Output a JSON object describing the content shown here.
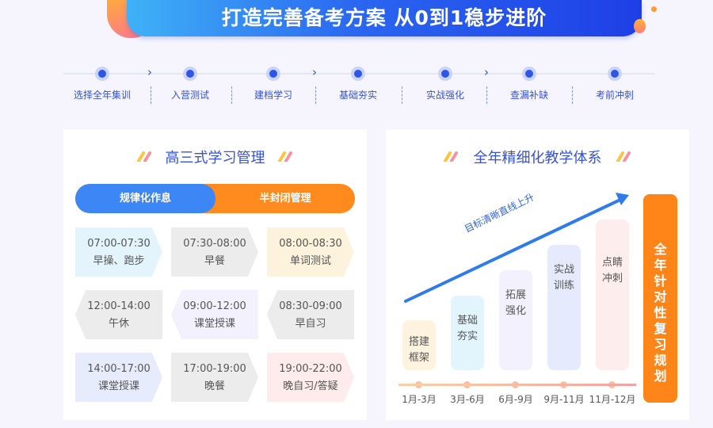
{
  "banner": {
    "title": "打造完善备考方案 从0到1稳步进阶"
  },
  "steps": [
    "选择全年集训",
    "入营测试",
    "建档学习",
    "基础夯实",
    "实战强化",
    "查漏补缺",
    "考前冲刺"
  ],
  "left": {
    "title": "高三式学习管理",
    "toggle": {
      "left": "规律化作息",
      "right": "半封闭管理"
    },
    "schedule": [
      {
        "time": "07:00-07:30",
        "label": "早操、跑步"
      },
      {
        "time": "07:30-08:00",
        "label": "早餐"
      },
      {
        "time": "08:00-08:30",
        "label": "单词测试"
      },
      {
        "time": "12:00-14:00",
        "label": "午休"
      },
      {
        "time": "09:00-12:00",
        "label": "课堂授课"
      },
      {
        "time": "08:30-09:00",
        "label": "早自习"
      },
      {
        "time": "14:00-17:00",
        "label": "课堂授课"
      },
      {
        "time": "17:00-19:00",
        "label": "晚餐"
      },
      {
        "time": "19:00-22:00",
        "label": "晚自习/答疑"
      }
    ]
  },
  "right": {
    "title": "全年精细化教学体系",
    "slogan": "目标清晰直线上升",
    "stages": [
      {
        "label": "搭建框架",
        "period": "1月-3月",
        "color": "#fdf3df"
      },
      {
        "label": "基础夯实",
        "period": "3月-6月",
        "color": "#e2f5fd"
      },
      {
        "label": "拓展强化",
        "period": "6月-9月",
        "color": "#f3f1fd"
      },
      {
        "label": "实战训练",
        "period": "9月-11月",
        "color": "#e5ebfc"
      },
      {
        "label": "点睛冲刺",
        "period": "11月-12月",
        "color": "#fdeeed"
      }
    ],
    "summary": "全年针对性复习规划"
  }
}
